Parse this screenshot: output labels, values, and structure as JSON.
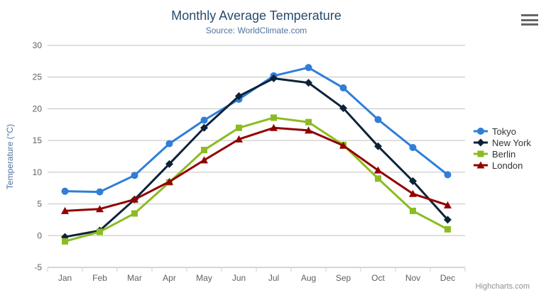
{
  "header": {
    "title": "Monthly Average Temperature",
    "subtitle": "Source: WorldClimate.com"
  },
  "credits": "Highcharts.com",
  "icons": {
    "export_menu": "hamburger-icon"
  },
  "colors": {
    "title": "#274b6d",
    "subtitle": "#4d759e",
    "axis_labels": "#606060",
    "axis_title": "#4d759e",
    "legend_text": "#333333",
    "grid": "#c0c0c0",
    "axis_line": "#c0d0e0",
    "credits": "#909090"
  },
  "chart_data": {
    "type": "line",
    "title": "Monthly Average Temperature",
    "subtitle": "Source: WorldClimate.com",
    "xlabel": "",
    "ylabel": "Temperature (°C)",
    "ylim": [
      -5,
      30
    ],
    "ytick_step": 5,
    "grid": true,
    "legend_position": "right",
    "categories": [
      "Jan",
      "Feb",
      "Mar",
      "Apr",
      "May",
      "Jun",
      "Jul",
      "Aug",
      "Sep",
      "Oct",
      "Nov",
      "Dec"
    ],
    "series": [
      {
        "name": "Tokyo",
        "color": "#2f7ed8",
        "marker": "circle",
        "values": [
          7.0,
          6.9,
          9.5,
          14.5,
          18.2,
          21.5,
          25.2,
          26.5,
          23.3,
          18.3,
          13.9,
          9.6
        ]
      },
      {
        "name": "New York",
        "color": "#0d233a",
        "marker": "diamond",
        "values": [
          -0.2,
          0.8,
          5.7,
          11.3,
          17.0,
          22.0,
          24.8,
          24.1,
          20.1,
          14.1,
          8.6,
          2.5
        ]
      },
      {
        "name": "Berlin",
        "color": "#8bbc21",
        "marker": "square",
        "values": [
          -0.9,
          0.6,
          3.5,
          8.4,
          13.5,
          17.0,
          18.6,
          17.9,
          14.3,
          9.0,
          3.9,
          1.0
        ]
      },
      {
        "name": "London",
        "color": "#910000",
        "marker": "triangle",
        "values": [
          3.9,
          4.2,
          5.7,
          8.5,
          11.9,
          15.2,
          17.0,
          16.6,
          14.2,
          10.3,
          6.6,
          4.8
        ]
      }
    ]
  }
}
